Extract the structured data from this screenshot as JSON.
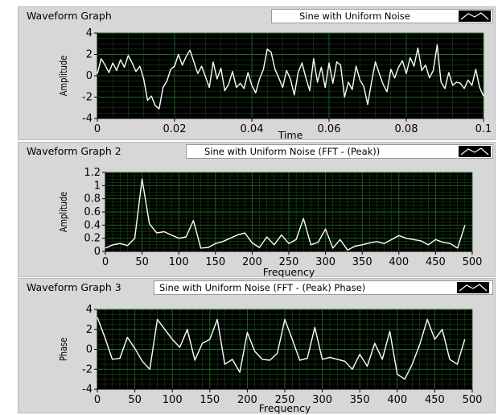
{
  "colors": {
    "plot_bg": "#000000",
    "grid": "#1f6b1f",
    "trace": "#ffffff",
    "panel": "#d7d7d7"
  },
  "graphs": [
    {
      "title": "Waveform Graph",
      "legend": "Sine with Uniform Noise",
      "legend_icon": "line-plot-icon"
    },
    {
      "title": "Waveform Graph 2",
      "legend": "Sine with Uniform Noise (FFT - (Peak))",
      "legend_icon": "line-plot-icon"
    },
    {
      "title": "Waveform Graph 3",
      "legend": "Sine with Uniform Noise (FFT - (Peak) Phase)",
      "legend_icon": "line-plot-icon"
    }
  ],
  "chart_data": [
    {
      "type": "line",
      "xlabel": "Time",
      "ylabel": "Amplitude",
      "xlim": [
        0,
        0.1
      ],
      "ylim": [
        -4,
        4
      ],
      "x_ticks": [
        "0",
        "0.02",
        "0.04",
        "0.06",
        "0.08",
        "0.1"
      ],
      "y_ticks": [
        "4",
        "2",
        "0",
        "-2",
        "-4"
      ],
      "grid": true,
      "series": [
        {
          "x": [
            0,
            0.001,
            0.002,
            0.003,
            0.004,
            0.005,
            0.006,
            0.007,
            0.008,
            0.009,
            0.01,
            0.011,
            0.012,
            0.013,
            0.014,
            0.015,
            0.016,
            0.017,
            0.018,
            0.019,
            0.02,
            0.021,
            0.022,
            0.023,
            0.024,
            0.025,
            0.026,
            0.027,
            0.028,
            0.029,
            0.03,
            0.031,
            0.032,
            0.033,
            0.034,
            0.035,
            0.036,
            0.037,
            0.038,
            0.039,
            0.04,
            0.041,
            0.042,
            0.043,
            0.044,
            0.045,
            0.046,
            0.047,
            0.048,
            0.049,
            0.05,
            0.051,
            0.052,
            0.053,
            0.054,
            0.055,
            0.056,
            0.057,
            0.058,
            0.059,
            0.06,
            0.061,
            0.062,
            0.063,
            0.064,
            0.065,
            0.066,
            0.067,
            0.068,
            0.069,
            0.07,
            0.071,
            0.072,
            0.073,
            0.074,
            0.075,
            0.076,
            0.077,
            0.078,
            0.079,
            0.08,
            0.081,
            0.082,
            0.083,
            0.084,
            0.085,
            0.086,
            0.087,
            0.088,
            0.089,
            0.09,
            0.091,
            0.092,
            0.093,
            0.094,
            0.095,
            0.096,
            0.097,
            0.098,
            0.099,
            0.1
          ],
          "values": [
            0.2,
            1.6,
            1.0,
            0.3,
            1.2,
            0.5,
            1.5,
            0.8,
            1.9,
            1.2,
            0.4,
            0.9,
            -0.3,
            -2.3,
            -1.9,
            -2.8,
            -3.1,
            -1.1,
            -0.5,
            0.6,
            0.9,
            2.0,
            1.0,
            1.8,
            2.4,
            1.3,
            0.2,
            0.9,
            -0.1,
            -1.1,
            1.3,
            -0.3,
            0.7,
            -1.4,
            -0.8,
            0.4,
            -1.1,
            -0.7,
            -1.2,
            0.3,
            -0.9,
            -1.6,
            -0.3,
            0.6,
            2.5,
            2.2,
            0.6,
            -0.2,
            -1.1,
            0.5,
            -0.3,
            -1.8,
            0.3,
            1.2,
            -0.2,
            -1.4,
            1.6,
            -0.6,
            0.8,
            -1.1,
            1.2,
            -0.7,
            1.3,
            1.0,
            -2.0,
            -0.6,
            -1.3,
            0.9,
            -0.4,
            -1.0,
            -2.7,
            -0.6,
            1.3,
            0.2,
            -0.8,
            -1.5,
            0.6,
            -0.2,
            0.8,
            1.4,
            0.2,
            1.7,
            0.9,
            2.6,
            0.5,
            1.0,
            -0.2,
            0.5,
            2.9,
            -0.6,
            -1.2,
            0.3,
            -0.9,
            -0.6,
            -0.7,
            -1.2,
            -0.4,
            -0.9,
            0.6,
            -1.1,
            -1.9
          ]
        }
      ]
    },
    {
      "type": "line",
      "xlabel": "Frequency",
      "ylabel": "Amplitude",
      "xlim": [
        0,
        500
      ],
      "ylim": [
        0,
        1.2
      ],
      "x_ticks": [
        "0",
        "50",
        "100",
        "150",
        "200",
        "250",
        "300",
        "350",
        "400",
        "450",
        "500"
      ],
      "y_ticks": [
        "1.2",
        "1",
        "0.8",
        "0.6",
        "0.4",
        "0.2",
        "0"
      ],
      "grid": true,
      "series": [
        {
          "x": [
            0,
            10,
            20,
            30,
            40,
            50,
            60,
            70,
            80,
            90,
            100,
            110,
            120,
            130,
            140,
            150,
            160,
            170,
            180,
            190,
            200,
            210,
            220,
            230,
            240,
            250,
            260,
            270,
            280,
            290,
            300,
            310,
            320,
            330,
            340,
            350,
            360,
            370,
            380,
            390,
            400,
            410,
            420,
            430,
            440,
            450,
            460,
            470,
            480,
            490
          ],
          "values": [
            0.05,
            0.1,
            0.12,
            0.09,
            0.2,
            1.1,
            0.42,
            0.28,
            0.3,
            0.25,
            0.2,
            0.22,
            0.47,
            0.05,
            0.06,
            0.12,
            0.15,
            0.2,
            0.25,
            0.28,
            0.13,
            0.06,
            0.22,
            0.1,
            0.25,
            0.12,
            0.18,
            0.5,
            0.1,
            0.14,
            0.34,
            0.05,
            0.18,
            0.02,
            0.08,
            0.1,
            0.13,
            0.15,
            0.12,
            0.18,
            0.24,
            0.2,
            0.18,
            0.16,
            0.1,
            0.18,
            0.14,
            0.12,
            0.05,
            0.4
          ]
        }
      ]
    },
    {
      "type": "line",
      "xlabel": "Frequency",
      "ylabel": "Phase",
      "xlim": [
        0,
        500
      ],
      "ylim": [
        -4,
        4
      ],
      "x_ticks": [
        "0",
        "50",
        "100",
        "150",
        "200",
        "250",
        "300",
        "350",
        "400",
        "450",
        "500"
      ],
      "y_ticks": [
        "4",
        "2",
        "0",
        "-2",
        "-4"
      ],
      "grid": true,
      "series": [
        {
          "x": [
            0,
            10,
            20,
            30,
            40,
            50,
            60,
            70,
            80,
            90,
            100,
            110,
            120,
            130,
            140,
            150,
            160,
            170,
            180,
            190,
            200,
            210,
            220,
            230,
            240,
            250,
            260,
            270,
            280,
            290,
            300,
            310,
            320,
            330,
            340,
            350,
            360,
            370,
            380,
            390,
            400,
            410,
            420,
            430,
            440,
            450,
            460,
            470,
            480,
            490
          ],
          "values": [
            3.2,
            1.2,
            -1.0,
            -0.9,
            1.2,
            0.1,
            -1.2,
            -2.0,
            3.0,
            2.0,
            1.0,
            0.2,
            2.0,
            -1.1,
            0.6,
            1.0,
            3.0,
            -1.5,
            -1.0,
            -2.3,
            1.7,
            -0.2,
            -1.0,
            -1.1,
            -0.4,
            3.0,
            1.0,
            -1.1,
            -0.9,
            2.2,
            -1.0,
            -0.8,
            -1.0,
            -1.2,
            -2.0,
            -0.5,
            -1.7,
            0.6,
            -1.0,
            1.8,
            -2.5,
            -3.0,
            -1.5,
            0.5,
            3.0,
            1.0,
            2.0,
            -1.0,
            -1.5,
            1.0
          ]
        }
      ]
    }
  ]
}
